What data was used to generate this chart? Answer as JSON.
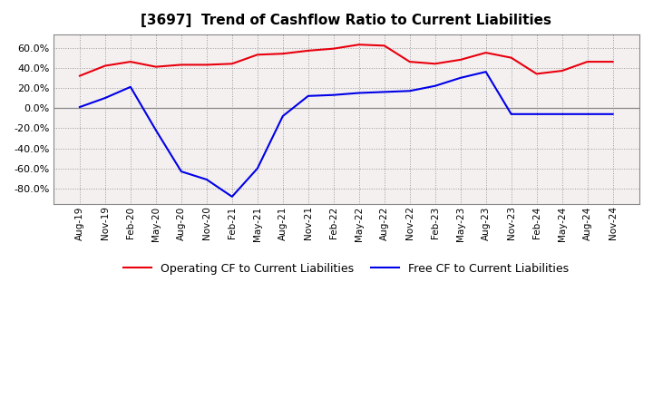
{
  "title": "[3697]  Trend of Cashflow Ratio to Current Liabilities",
  "x_labels": [
    "Aug-19",
    "Nov-19",
    "Feb-20",
    "May-20",
    "Aug-20",
    "Nov-20",
    "Feb-21",
    "May-21",
    "Aug-21",
    "Nov-21",
    "Feb-22",
    "May-22",
    "Aug-22",
    "Nov-22",
    "Feb-23",
    "May-23",
    "Aug-23",
    "Nov-23",
    "Feb-24",
    "May-24",
    "Aug-24",
    "Nov-24"
  ],
  "operating_cf": [
    0.32,
    0.42,
    0.46,
    0.41,
    0.43,
    0.43,
    0.44,
    0.53,
    0.54,
    0.57,
    0.59,
    0.63,
    0.62,
    0.46,
    0.44,
    0.48,
    0.55,
    0.5,
    0.34,
    0.37,
    0.46,
    0.46
  ],
  "free_cf": [
    0.01,
    0.1,
    0.21,
    -0.22,
    -0.63,
    -0.71,
    -0.88,
    -0.6,
    -0.08,
    0.12,
    0.13,
    0.15,
    0.16,
    0.17,
    0.22,
    0.3,
    0.36,
    -0.06,
    -0.06,
    -0.06,
    -0.06,
    -0.06
  ],
  "operating_color": "#e8000d",
  "free_color": "#0000e8",
  "ylim_min": -0.95,
  "ylim_max": 0.73,
  "yticks": [
    -0.8,
    -0.6,
    -0.4,
    -0.2,
    0.0,
    0.2,
    0.4,
    0.6
  ],
  "legend_operating": "Operating CF to Current Liabilities",
  "legend_free": "Free CF to Current Liabilities",
  "background_color": "#ffffff",
  "grid_color": "#999999",
  "plot_bg": "#ffffff",
  "zero_line_color": "#888888"
}
